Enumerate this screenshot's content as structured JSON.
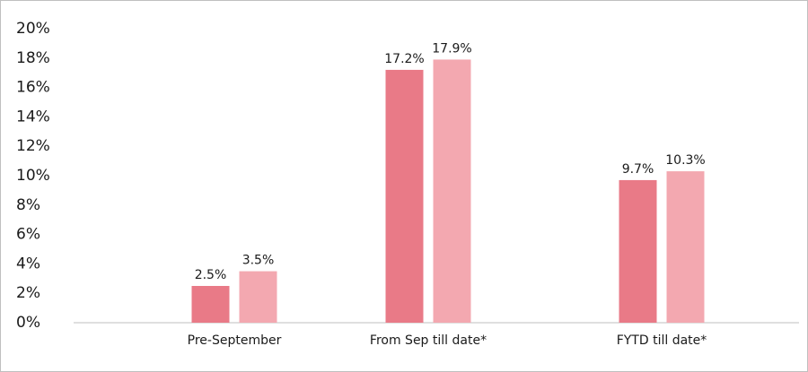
{
  "chart_data": {
    "type": "bar",
    "categories": [
      "Pre-September",
      "From Sep till date*",
      "FYTD till date*"
    ],
    "series": [
      {
        "color": "#e97a87",
        "values": [
          2.5,
          17.2,
          9.7
        ],
        "value_labels": [
          "2.5%",
          "17.2%",
          "9.7%"
        ]
      },
      {
        "color": "#f3a8b0",
        "values": [
          3.5,
          17.9,
          10.3
        ],
        "value_labels": [
          "3.5%",
          "17.9%",
          "10.3%"
        ]
      }
    ],
    "ylim": [
      0,
      20
    ],
    "yticks": [
      {
        "value": 0,
        "label": "0%"
      },
      {
        "value": 2,
        "label": "2%"
      },
      {
        "value": 4,
        "label": "4%"
      },
      {
        "value": 6,
        "label": "6%"
      },
      {
        "value": 8,
        "label": "8%"
      },
      {
        "value": 10,
        "label": "10%"
      },
      {
        "value": 12,
        "label": "12%"
      },
      {
        "value": 14,
        "label": "14%"
      },
      {
        "value": 16,
        "label": "16%"
      },
      {
        "value": 18,
        "label": "18%"
      },
      {
        "value": 20,
        "label": "20%"
      }
    ],
    "grid": false
  }
}
